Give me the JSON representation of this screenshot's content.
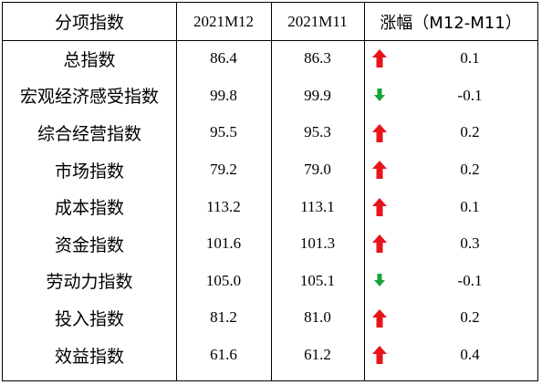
{
  "header": {
    "col_name": "分项指数",
    "col_m12": "2021M12",
    "col_m11": "2021M11",
    "col_change": "涨幅（M12-M11）"
  },
  "rows": [
    {
      "name": "总指数",
      "m12": "86.4",
      "m11": "86.3",
      "direction": "up",
      "change": "0.1"
    },
    {
      "name": "宏观经济感受指数",
      "m12": "99.8",
      "m11": "99.9",
      "direction": "down",
      "change": "-0.1"
    },
    {
      "name": "综合经营指数",
      "m12": "95.5",
      "m11": "95.3",
      "direction": "up",
      "change": "0.2"
    },
    {
      "name": "市场指数",
      "m12": "79.2",
      "m11": "79.0",
      "direction": "up",
      "change": "0.2"
    },
    {
      "name": "成本指数",
      "m12": "113.2",
      "m11": "113.1",
      "direction": "up",
      "change": "0.1"
    },
    {
      "name": "资金指数",
      "m12": "101.6",
      "m11": "101.3",
      "direction": "up",
      "change": "0.3"
    },
    {
      "name": "劳动力指数",
      "m12": "105.0",
      "m11": "105.1",
      "direction": "down",
      "change": "-0.1"
    },
    {
      "name": "投入指数",
      "m12": "81.2",
      "m11": "81.0",
      "direction": "up",
      "change": "0.2"
    },
    {
      "name": "效益指数",
      "m12": "61.6",
      "m11": "61.2",
      "direction": "up",
      "change": "0.4"
    }
  ],
  "colors": {
    "up_arrow": "#e8141b",
    "down_arrow": "#1aa33b",
    "border": "#000000"
  }
}
